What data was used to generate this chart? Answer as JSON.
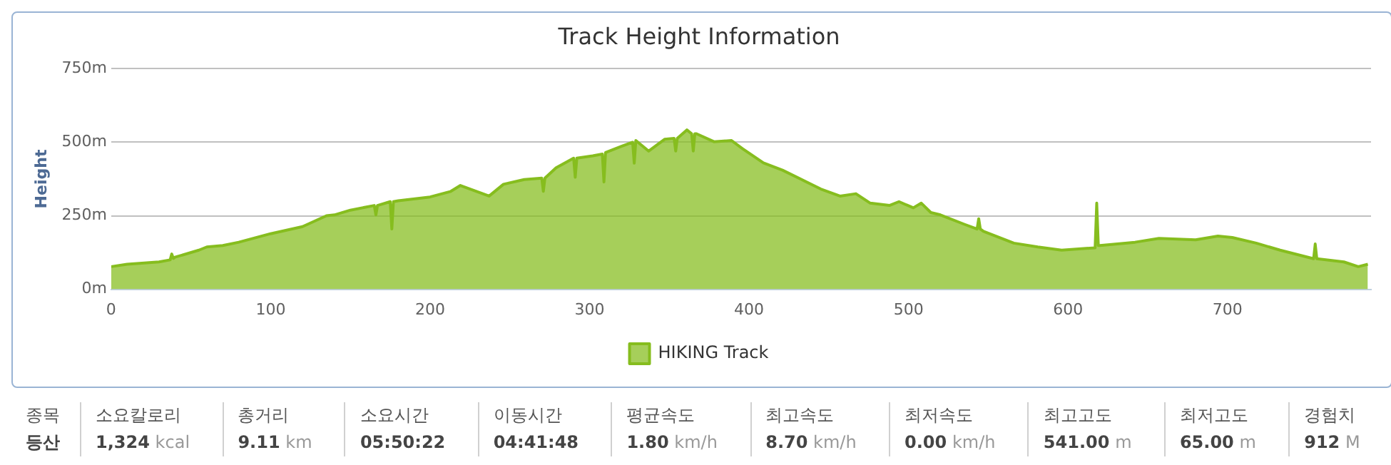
{
  "chart_data": [
    {
      "type": "area",
      "title": "Track Height Information",
      "ylabel": "Height",
      "xlim": [
        0,
        790
      ],
      "xticks": [
        0,
        100,
        200,
        300,
        400,
        500,
        600,
        700
      ],
      "ylim": [
        0,
        750
      ],
      "yticks": [
        {
          "value": 0,
          "label": "0m"
        },
        {
          "value": 250,
          "label": "250m"
        },
        {
          "value": 500,
          "label": "500m"
        },
        {
          "value": 750,
          "label": "750m"
        }
      ],
      "grid": "y",
      "legend": "bottom",
      "marker": "none",
      "series": [
        {
          "name": "HIKING Track",
          "color": "#86bd1e",
          "x": [
            0,
            10,
            30,
            37,
            38,
            39,
            40,
            55,
            60,
            70,
            80,
            100,
            120,
            135,
            140,
            150,
            165,
            166,
            167,
            175,
            176,
            177,
            180,
            200,
            213,
            219,
            237,
            246,
            259,
            270,
            271,
            272,
            279,
            290,
            291,
            292,
            302,
            308,
            309,
            310,
            320,
            327,
            328,
            329,
            337,
            347,
            353,
            354,
            355,
            361,
            364,
            365,
            366,
            367,
            378,
            389,
            396,
            409,
            421,
            433,
            445,
            457,
            467,
            476,
            488,
            494,
            503,
            508,
            514,
            520,
            535,
            543,
            544,
            545,
            547,
            566,
            581,
            596,
            617,
            618,
            619,
            620,
            642,
            657,
            680,
            694,
            703,
            718,
            733,
            754,
            755,
            756,
            773,
            782,
            788
          ],
          "values": [
            77,
            85,
            93,
            100,
            120,
            105,
            109,
            133,
            144,
            149,
            160,
            189,
            213,
            250,
            253,
            269,
            285,
            253,
            285,
            298,
            205,
            298,
            301,
            314,
            333,
            353,
            317,
            357,
            373,
            378,
            333,
            378,
            413,
            446,
            381,
            446,
            454,
            460,
            365,
            465,
            486,
            500,
            429,
            506,
            470,
            510,
            513,
            470,
            513,
            542,
            529,
            470,
            529,
            529,
            502,
            506,
            478,
            430,
            405,
            373,
            341,
            317,
            325,
            293,
            285,
            298,
            277,
            293,
            261,
            253,
            221,
            205,
            240,
            205,
            197,
            157,
            144,
            133,
            141,
            293,
            149,
            149,
            160,
            173,
            168,
            181,
            176,
            157,
            133,
            104,
            154,
            104,
            93,
            77,
            85
          ]
        }
      ]
    },
    {
      "type": "other",
      "categories": [
        "종목",
        "소요칼로리",
        "총거리",
        "소요시간",
        "이동시간",
        "평균속도",
        "최고속도",
        "최저속도",
        "최고고도",
        "최저고도",
        "경험치"
      ],
      "annotations": [
        "등산",
        "1,324 kcal",
        "9.11 km",
        "05:50:22",
        "04:41:48",
        "1.80 km/h",
        "8.70 km/h",
        "0.00 km/h",
        "541.00 m",
        "65.00 m",
        "912 M"
      ]
    }
  ]
}
